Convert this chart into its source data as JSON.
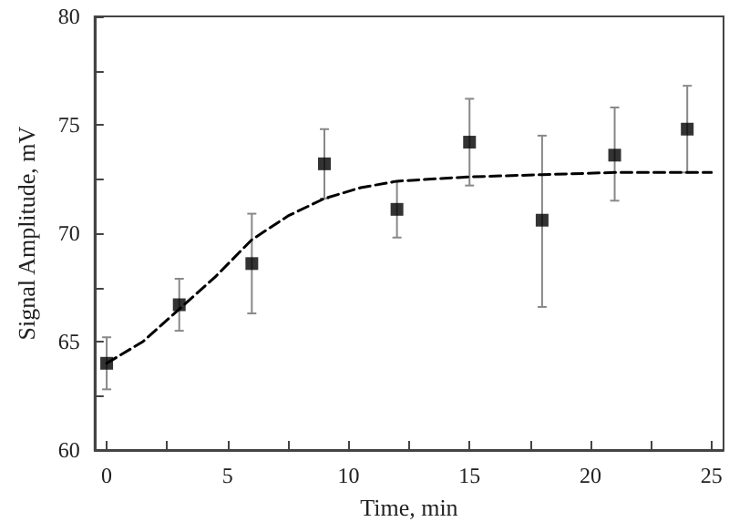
{
  "chart_data": {
    "type": "scatter",
    "xlabel": "Time, min",
    "ylabel": "Signal Amplitude, mV",
    "xlim": [
      -0.5,
      25.5
    ],
    "xticks": [
      0,
      5,
      10,
      15,
      20,
      25
    ],
    "ylim": [
      60,
      80
    ],
    "yticks": [
      60,
      65,
      70,
      75,
      80
    ],
    "series": [
      {
        "color": "#000000",
        "marker": "square",
        "x": [
          0,
          3,
          6,
          9,
          12,
          15,
          18,
          21,
          24
        ],
        "values": [
          64.0,
          66.7,
          68.6,
          73.2,
          71.1,
          74.2,
          70.6,
          73.6,
          74.8
        ],
        "errors": [
          [
            62.8,
            65.2
          ],
          [
            65.5,
            67.9
          ],
          [
            66.3,
            70.9
          ],
          [
            71.6,
            74.8
          ],
          [
            69.8,
            72.4
          ],
          [
            72.2,
            76.2
          ],
          [
            66.6,
            74.5
          ],
          [
            71.5,
            75.8
          ],
          [
            72.8,
            76.8
          ]
        ]
      },
      {
        "type": "line",
        "color": "#000000",
        "marker": "none",
        "line_style": "dashed",
        "x": [
          0,
          1.5,
          3,
          4.5,
          6,
          7.5,
          9,
          10.5,
          12,
          15,
          18,
          21,
          25
        ],
        "values": [
          64.0,
          65.0,
          66.5,
          68.0,
          69.7,
          70.8,
          71.6,
          72.1,
          72.4,
          72.6,
          72.7,
          72.8,
          72.8
        ]
      }
    ]
  }
}
